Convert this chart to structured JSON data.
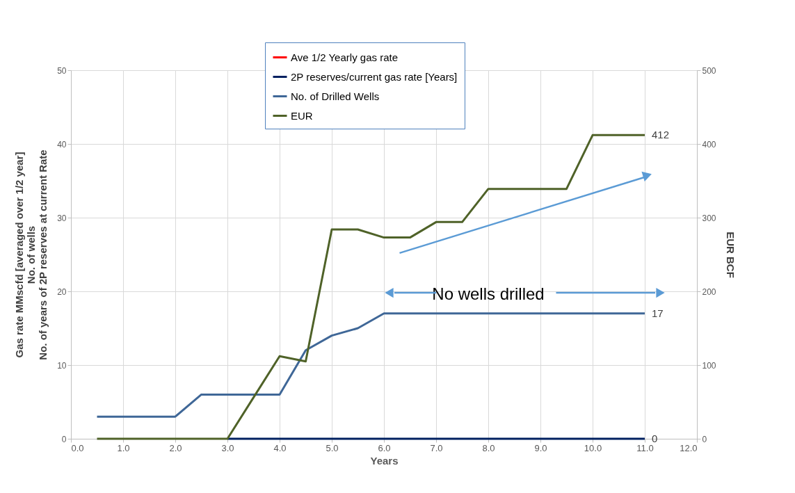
{
  "chart_data": {
    "type": "line",
    "xlabel": "Years",
    "ylabel": "Gas rate MMscfd [averaged over 1/2 year]\nNo. of wells\nNo. of years of 2P reserves at current Rate",
    "y2label": "EUR BCF",
    "xlim": [
      0,
      12
    ],
    "xticks": [
      {
        "value": 0,
        "label": "0.0"
      },
      {
        "value": 1,
        "label": "1.0"
      },
      {
        "value": 2,
        "label": "2.0"
      },
      {
        "value": 3,
        "label": "3.0"
      },
      {
        "value": 4,
        "label": "4.0"
      },
      {
        "value": 5,
        "label": "5.0"
      },
      {
        "value": 6,
        "label": "6.0"
      },
      {
        "value": 7,
        "label": "7.0"
      },
      {
        "value": 8,
        "label": "8.0"
      },
      {
        "value": 9,
        "label": "9.0"
      },
      {
        "value": 10,
        "label": "10.0"
      },
      {
        "value": 11,
        "label": "11.0"
      },
      {
        "value": 12,
        "label": "12.0"
      }
    ],
    "ylim": [
      0,
      50
    ],
    "yticks": [
      0,
      10,
      20,
      30,
      40,
      50
    ],
    "y2lim": [
      0,
      500
    ],
    "y2ticks": [
      0,
      100,
      200,
      300,
      400,
      500
    ],
    "grid": true,
    "legend": "top",
    "line_style": "solid",
    "marker": "none",
    "annotations": [
      "No wells drilled"
    ],
    "series": [
      {
        "name": "Ave 1/2 Yearly gas rate",
        "color": "#ff0000"
      },
      {
        "name": "2P reserves/current gas rate [Years]",
        "color": "#002060",
        "x": [
          3,
          4,
          5,
          6,
          7,
          8,
          9,
          10,
          11
        ],
        "values": [
          0,
          0,
          0,
          0,
          0,
          0,
          0,
          0,
          0
        ],
        "value_labels": [
          null,
          null,
          null,
          null,
          null,
          null,
          null,
          null,
          "0"
        ]
      },
      {
        "name": "No. of Drilled Wells",
        "color": "#3f6797",
        "x": [
          0.5,
          1,
          1.5,
          2,
          2.5,
          3,
          3.5,
          4,
          4.5,
          5,
          5.5,
          6,
          6.5,
          7,
          7.5,
          8,
          8.5,
          9,
          9.5,
          10,
          10.5,
          11
        ],
        "values": [
          3,
          3,
          3,
          3,
          6,
          6,
          6,
          6,
          12,
          14,
          15,
          17,
          17,
          17,
          17,
          17,
          17,
          17,
          17,
          17,
          17,
          17
        ],
        "value_labels": [
          null,
          null,
          null,
          null,
          null,
          null,
          null,
          null,
          null,
          null,
          null,
          null,
          null,
          null,
          null,
          null,
          null,
          null,
          null,
          null,
          null,
          "17"
        ]
      },
      {
        "name": "EUR",
        "color": "#4f6228",
        "axis": "y2",
        "x": [
          0.5,
          1,
          1.5,
          2,
          2.5,
          3,
          3.5,
          4,
          4.5,
          5,
          5.5,
          6,
          6.5,
          7,
          7.5,
          8,
          8.5,
          9,
          9.5,
          10,
          10.5,
          11
        ],
        "values": [
          0,
          0,
          0,
          0,
          0,
          0,
          56,
          112,
          105,
          284,
          284,
          273,
          273,
          294,
          294,
          339,
          339,
          339,
          339,
          412,
          412,
          412
        ],
        "value_labels": [
          null,
          null,
          null,
          null,
          null,
          null,
          null,
          null,
          null,
          null,
          null,
          null,
          null,
          null,
          null,
          null,
          null,
          null,
          null,
          null,
          null,
          "412"
        ]
      }
    ]
  }
}
